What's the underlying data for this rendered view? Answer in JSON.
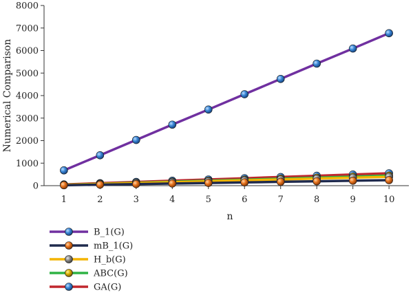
{
  "chart_data": {
    "type": "line",
    "xlabel": "n",
    "ylabel": "Numerical Comparison",
    "x": [
      1,
      2,
      3,
      4,
      5,
      6,
      7,
      8,
      9,
      10
    ],
    "xlim": [
      0.45,
      10.55
    ],
    "ylim": [
      0,
      8000
    ],
    "yticks": [
      0,
      1000,
      2000,
      3000,
      4000,
      5000,
      6000,
      7000,
      8000
    ],
    "grid": false,
    "legend_position": "bottom-left",
    "series": [
      {
        "name": "B_1(G)",
        "color": "#7030a0",
        "marker_color": "#2e75b6",
        "values": [
          680,
          1350,
          2030,
          2710,
          3380,
          4060,
          4740,
          5420,
          6090,
          6770
        ]
      },
      {
        "name": "mB_1(G)",
        "color": "#1f2a4d",
        "marker_color": "#e07020",
        "values": [
          20,
          45,
          70,
          95,
          120,
          145,
          170,
          195,
          220,
          245
        ]
      },
      {
        "name": "H_b(G)",
        "color": "#f4b400",
        "marker_color": "#7f7f7f",
        "values": [
          35,
          75,
          115,
          155,
          195,
          235,
          275,
          315,
          355,
          395
        ]
      },
      {
        "name": "ABC(G)",
        "color": "#2fb344",
        "marker_color": "#d4a900",
        "values": [
          40,
          85,
          130,
          175,
          220,
          265,
          310,
          355,
          400,
          445
        ]
      },
      {
        "name": "GA(G)",
        "color": "#c0272d",
        "marker_color": "#2e75b6",
        "values": [
          55,
          110,
          165,
          220,
          275,
          330,
          385,
          440,
          495,
          550
        ]
      }
    ]
  }
}
